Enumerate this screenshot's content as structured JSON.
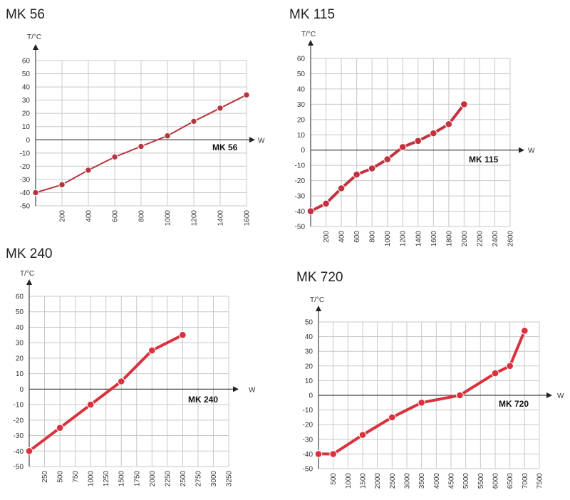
{
  "chart_data": [
    {
      "type": "line",
      "title": "MK 56",
      "ylabel": "T/°C",
      "xlabel": "W",
      "series_label": "MK 56",
      "ylim": [
        -50,
        60
      ],
      "yticks": [
        60,
        50,
        40,
        30,
        20,
        10,
        0,
        -10,
        -20,
        -30,
        -40,
        -50
      ],
      "xticks": [
        200,
        400,
        600,
        800,
        1000,
        1200,
        1400,
        1600
      ],
      "xlim": [
        0,
        1600
      ],
      "x": [
        0,
        200,
        400,
        600,
        800,
        1000,
        1200,
        1400,
        1600
      ],
      "y": [
        -40,
        -34,
        -23,
        -13,
        -5,
        3,
        14,
        24,
        34
      ],
      "color": "#b5363f",
      "line_width": 2
    },
    {
      "type": "line",
      "title": "MK 115",
      "ylabel": "T/°C",
      "xlabel": "W",
      "series_label": "MK 115",
      "ylim": [
        -50,
        60
      ],
      "yticks": [
        60,
        50,
        40,
        30,
        20,
        10,
        0,
        -10,
        -20,
        -30,
        -40,
        -50
      ],
      "xticks": [
        200,
        400,
        600,
        800,
        1000,
        1200,
        1400,
        1600,
        1800,
        2000,
        2200,
        2400,
        2600
      ],
      "xlim": [
        0,
        2600
      ],
      "x": [
        0,
        200,
        400,
        600,
        800,
        1000,
        1200,
        1400,
        1600,
        1800,
        2000
      ],
      "y": [
        -40,
        -35,
        -25,
        -16,
        -12,
        -6,
        2,
        6,
        11,
        17,
        30
      ],
      "color": "#c4313e",
      "line_width": 4
    },
    {
      "type": "line",
      "title": "MK 240",
      "ylabel": "T/°C",
      "xlabel": "W",
      "series_label": "MK 240",
      "ylim": [
        -50,
        60
      ],
      "yticks": [
        60,
        50,
        40,
        30,
        20,
        10,
        0,
        -10,
        -20,
        -30,
        -40,
        -50
      ],
      "xticks": [
        250,
        500,
        750,
        1000,
        1250,
        1500,
        1750,
        2000,
        2250,
        2500,
        2750,
        3000,
        3250
      ],
      "xlim": [
        0,
        3250
      ],
      "x": [
        0,
        500,
        1000,
        1500,
        2000,
        2500
      ],
      "y": [
        -40,
        -25,
        -10,
        5,
        25,
        35
      ],
      "color": "#d9323e",
      "line_width": 4
    },
    {
      "type": "line",
      "title": "MK 720",
      "ylabel": "T/°C",
      "xlabel": "W",
      "series_label": "MK 720",
      "ylim": [
        -50,
        50
      ],
      "yticks": [
        50,
        40,
        30,
        20,
        10,
        0,
        -10,
        -20,
        -30,
        -40,
        -50
      ],
      "xticks": [
        500,
        1000,
        1500,
        2000,
        2500,
        3000,
        3500,
        4000,
        4500,
        5000,
        5500,
        6000,
        6500,
        7000,
        7500
      ],
      "xlim": [
        0,
        7500
      ],
      "x": [
        0,
        500,
        1500,
        2500,
        3500,
        4800,
        6000,
        6500,
        7000
      ],
      "y": [
        -40,
        -40,
        -27,
        -15,
        -5,
        0,
        15,
        20,
        44
      ],
      "color": "#d9323e",
      "line_width": 4
    }
  ]
}
